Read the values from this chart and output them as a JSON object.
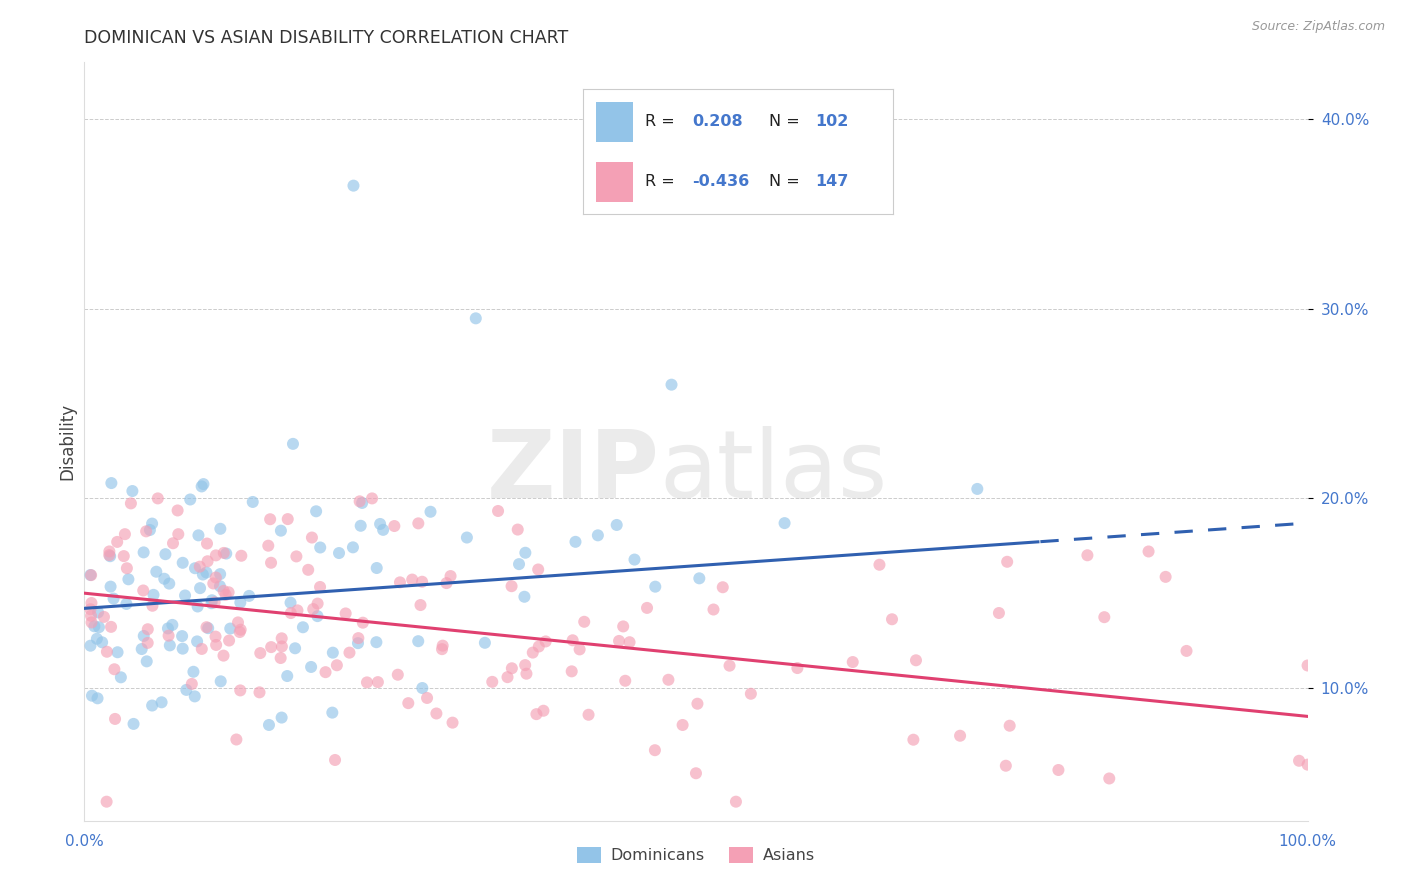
{
  "title": "DOMINICAN VS ASIAN DISABILITY CORRELATION CHART",
  "source": "Source: ZipAtlas.com",
  "ylabel": "Disability",
  "xlim": [
    0.0,
    100.0
  ],
  "ylim": [
    3.0,
    43.0
  ],
  "dominican_color": "#93c4e8",
  "asian_color": "#f4a0b5",
  "dominican_line_color": "#3060b0",
  "asian_line_color": "#e04070",
  "dominican_R": 0.208,
  "dominican_N": 102,
  "asian_R": -0.436,
  "asian_N": 147,
  "watermark_zip": "ZIP",
  "watermark_atlas": "atlas",
  "background_color": "#ffffff",
  "grid_color": "#cccccc",
  "title_color": "#333333",
  "legend_N_color": "#4477cc",
  "dot_size": 75,
  "dot_alpha": 0.65,
  "dominican_y_at_0": 14.2,
  "dominican_y_at_100": 18.7,
  "asian_y_at_0": 15.0,
  "asian_y_at_100": 8.5,
  "dashed_start_x": 78.0
}
